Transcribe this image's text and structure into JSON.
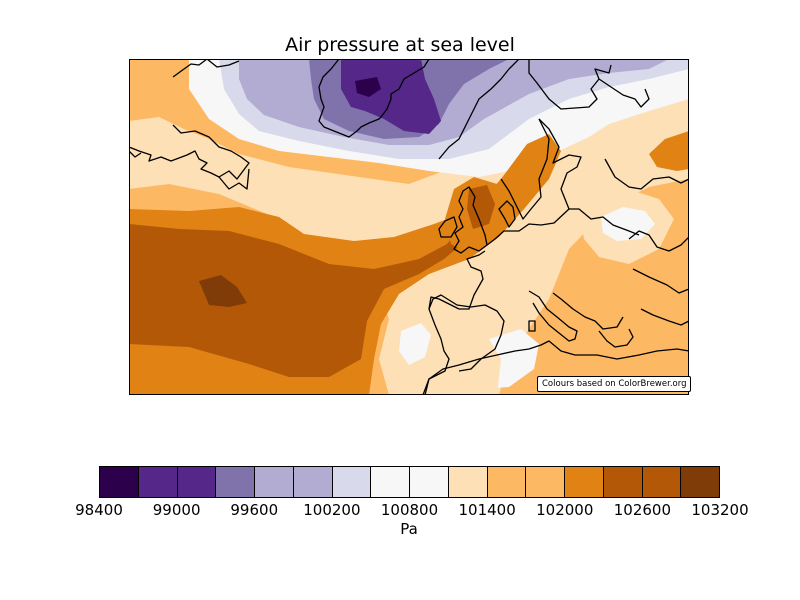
{
  "title": "Air pressure at sea level",
  "credit": "Colours based on ColorBrewer.org",
  "colorbar": {
    "unit": "Pa",
    "tick_labels": [
      "98400",
      "99000",
      "99600",
      "100200",
      "100800",
      "101400",
      "102000",
      "102600",
      "103200"
    ],
    "colors": [
      "#2d004b",
      "#542788",
      "#542788",
      "#8073ac",
      "#b2abd2",
      "#b2abd2",
      "#d8daeb",
      "#f7f7f7",
      "#f7f7f7",
      "#fee0b6",
      "#fdb863",
      "#fdb863",
      "#e08214",
      "#b35806",
      "#b35806",
      "#7f3b08"
    ]
  },
  "map": {
    "projection": "equirectangular",
    "region": "North Atlantic and Europe",
    "coastline_color": "#000000"
  }
}
